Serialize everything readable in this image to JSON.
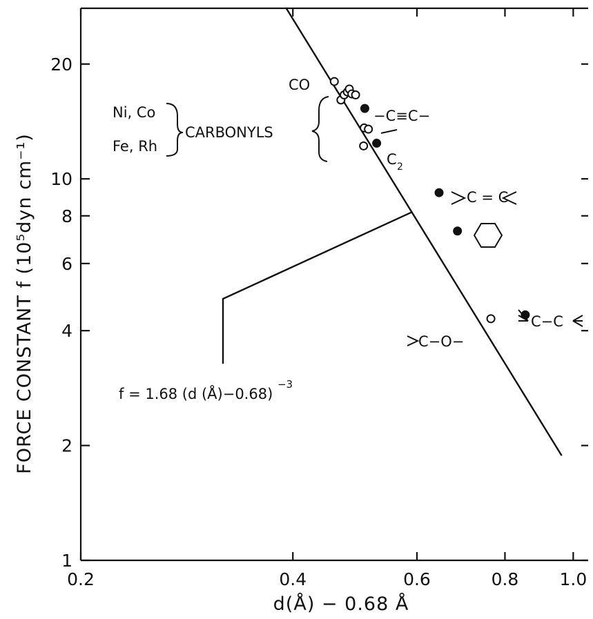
{
  "chart_data": {
    "type": "scatter",
    "title": "",
    "xscale": "log",
    "yscale": "log",
    "xlim": [
      0.2,
      1.05
    ],
    "ylim": [
      1,
      28
    ],
    "x_ticks": [
      "0.2",
      "0.4",
      "0.6",
      "0.8",
      "1.0"
    ],
    "y_ticks": [
      "1",
      "2",
      "4",
      "6",
      "8",
      "10",
      "20"
    ],
    "xlabel": "d(Å) − 0.68 Å",
    "ylabel": "FORCE CONSTANT f (10⁵dyn cm⁻¹)",
    "fit": {
      "label_text": "f = 1.68 (d (Å)−0.68)",
      "label_exp": "−3",
      "coef": 1.68,
      "exponent": -3,
      "x_range": [
        0.391,
        0.963
      ]
    },
    "series": [
      {
        "name": "CARBONYLS",
        "marker": "open",
        "points": [
          {
            "x": 0.458,
            "y": 18.0
          },
          {
            "x": 0.468,
            "y": 16.1
          },
          {
            "x": 0.473,
            "y": 16.6
          },
          {
            "x": 0.478,
            "y": 16.9
          },
          {
            "x": 0.481,
            "y": 17.2
          },
          {
            "x": 0.485,
            "y": 16.7
          },
          {
            "x": 0.491,
            "y": 16.6
          },
          {
            "x": 0.505,
            "y": 13.6
          },
          {
            "x": 0.512,
            "y": 13.5
          },
          {
            "x": 0.504,
            "y": 12.2
          }
        ]
      },
      {
        "name": "open",
        "marker": "open",
        "points": [
          {
            "x": 0.764,
            "y": 4.3
          }
        ]
      },
      {
        "name": "filled",
        "marker": "filled",
        "points": [
          {
            "x": 0.506,
            "y": 15.3
          },
          {
            "x": 0.526,
            "y": 12.4
          },
          {
            "x": 0.645,
            "y": 9.2
          },
          {
            "x": 0.685,
            "y": 7.3
          },
          {
            "x": 0.855,
            "y": 4.4
          }
        ]
      }
    ],
    "annotations": {
      "co": "CO",
      "metals_line1": "Ni, Co",
      "metals_line2": "Fe, Rh",
      "carbonyls": "CARBONYLS",
      "triple": "−C≡C−",
      "c2": "C",
      "c2_sub": "2",
      "double": "C = C",
      "co_single": "C−O−",
      "cc_single": "C−C"
    }
  }
}
